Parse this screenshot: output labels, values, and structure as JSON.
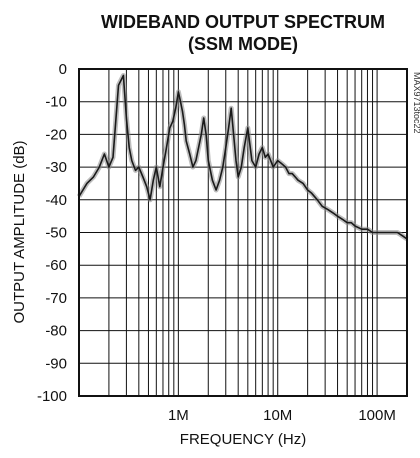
{
  "chart_data": {
    "type": "line",
    "title": "WIDEBAND OUTPUT SPECTRUM",
    "subtitle": "(SSM MODE)",
    "xlabel": "FREQUENCY (Hz)",
    "ylabel": "OUTPUT AMPLITUDE (dB)",
    "side_label": "MAX9713toc22",
    "x_scale": "log",
    "xlim": [
      100000,
      200000000
    ],
    "ylim": [
      -100,
      0
    ],
    "x_tick_labels": [
      {
        "value": 1000000,
        "label": "1M"
      },
      {
        "value": 10000000,
        "label": "10M"
      },
      {
        "value": 100000000,
        "label": "100M"
      }
    ],
    "y_tick_labels": [
      "0",
      "-10",
      "-20",
      "-30",
      "-40",
      "-50",
      "-60",
      "-70",
      "-80",
      "-90",
      "-100"
    ],
    "y_ticks": [
      0,
      -10,
      -20,
      -30,
      -40,
      -50,
      -60,
      -70,
      -80,
      -90,
      -100
    ],
    "grid": true,
    "series": [
      {
        "color": "#1a1a1a",
        "x": [
          100000,
          120000,
          140000,
          160000,
          180000,
          200000,
          220000,
          250000,
          280000,
          300000,
          320000,
          340000,
          370000,
          400000,
          440000,
          480000,
          520000,
          560000,
          600000,
          650000,
          700000,
          760000,
          820000,
          880000,
          940000,
          1000000,
          1050000,
          1100000,
          1150000,
          1200000,
          1300000,
          1400000,
          1500000,
          1600000,
          1700000,
          1800000,
          1900000,
          2000000,
          2200000,
          2400000,
          2600000,
          2800000,
          3000000,
          3200000,
          3400000,
          3600000,
          3800000,
          4000000,
          4300000,
          4600000,
          5000000,
          5500000,
          6000000,
          6500000,
          7000000,
          7500000,
          8000000,
          9000000,
          10000000,
          11000000,
          12000000,
          13000000,
          14000000,
          15000000,
          16000000,
          18000000,
          20000000,
          22000000,
          25000000,
          28000000,
          32000000,
          36000000,
          40000000,
          45000000,
          50000000,
          55000000,
          60000000,
          70000000,
          80000000,
          90000000,
          100000000,
          110000000,
          120000000,
          140000000,
          160000000,
          180000000,
          200000000
        ],
        "values": [
          -39,
          -35,
          -33,
          -30,
          -26,
          -30,
          -27,
          -5,
          -2,
          -15,
          -24,
          -28,
          -31,
          -30,
          -33,
          -36,
          -40,
          -34,
          -30,
          -36,
          -30,
          -24,
          -18,
          -16,
          -12,
          -7,
          -10,
          -13,
          -17,
          -22,
          -26,
          -30,
          -28,
          -24,
          -20,
          -15,
          -20,
          -28,
          -34,
          -37,
          -34,
          -30,
          -24,
          -18,
          -12,
          -20,
          -28,
          -33,
          -30,
          -24,
          -18,
          -28,
          -30,
          -26,
          -24,
          -27,
          -26,
          -30,
          -28,
          -29,
          -30,
          -32,
          -32,
          -33,
          -34,
          -35,
          -37,
          -38,
          -40,
          -42,
          -43,
          -44,
          -45,
          -46,
          -47,
          -47,
          -48,
          -49,
          -49,
          -50,
          -50,
          -50,
          -50,
          -50,
          -50,
          -51,
          -52
        ]
      }
    ]
  }
}
